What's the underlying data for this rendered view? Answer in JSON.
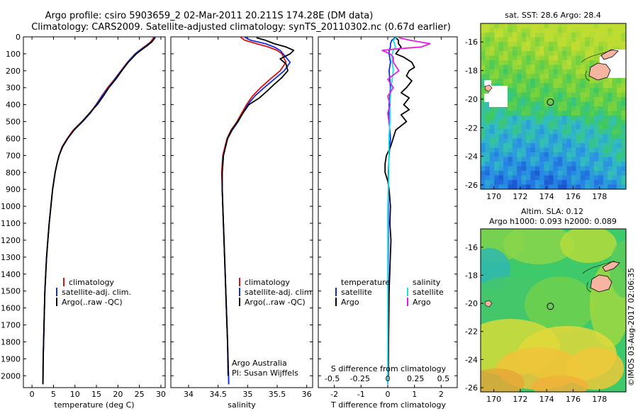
{
  "header": {
    "line1": "Argo profile: csiro 5903659_2 02-Mar-2011 20.211S 174.28E (DM data)",
    "line2": "Climatology: CARS2009. Satellite-adjusted climatology: synTS_20110302.nc (0.67d earlier)"
  },
  "colors": {
    "climatology": "#e01010",
    "satellite": "#1030e0",
    "argo": "#000000",
    "sal_satellite": "#20e0e0",
    "sal_argo": "#e020e0"
  },
  "chart_data": [
    {
      "type": "line",
      "title": "",
      "xlabel": "temperature (deg C)",
      "ylabel": "",
      "xlim": [
        -2,
        31
      ],
      "ylim": [
        2070,
        0
      ],
      "y_inverted": true,
      "xticks": [
        0,
        5,
        10,
        15,
        20,
        25,
        30
      ],
      "yticks": [
        0,
        100,
        200,
        300,
        400,
        500,
        600,
        700,
        800,
        900,
        1000,
        1100,
        1200,
        1300,
        1400,
        1500,
        1600,
        1700,
        1800,
        1900,
        2000
      ],
      "legend": [
        "climatology",
        "satellite-adj. clim.",
        "Argo(..raw -QC)"
      ],
      "series": [
        {
          "name": "climatology",
          "color": "#e01010",
          "depth": [
            2,
            10,
            30,
            50,
            80,
            100,
            150,
            200,
            250,
            300,
            350,
            400,
            450,
            500,
            550,
            600,
            650,
            700,
            750,
            800,
            900,
            1000,
            1100,
            1200,
            1300,
            1400,
            1500,
            1600,
            1700,
            1800,
            1900,
            2050
          ],
          "values": [
            28.3,
            28.2,
            27.6,
            26.6,
            25.0,
            24.0,
            22.2,
            20.7,
            19.2,
            17.6,
            16.2,
            14.9,
            13.5,
            11.6,
            9.6,
            8.2,
            7.0,
            6.3,
            5.8,
            5.4,
            4.8,
            4.4,
            4.0,
            3.7,
            3.4,
            3.2,
            3.0,
            2.9,
            2.8,
            2.7,
            2.6,
            2.55
          ]
        },
        {
          "name": "satellite-adj. clim.",
          "color": "#1030e0",
          "depth": [
            2,
            10,
            30,
            50,
            80,
            100,
            150,
            200,
            250,
            300,
            350,
            400,
            450,
            500,
            550,
            600,
            650,
            700,
            750,
            800,
            900,
            1000,
            1100,
            1200,
            1300,
            1400,
            1500,
            1600,
            1700,
            1800,
            1900,
            2050
          ],
          "values": [
            28.7,
            28.5,
            27.8,
            26.8,
            25.1,
            24.1,
            22.3,
            20.8,
            19.3,
            17.8,
            16.3,
            15.0,
            13.6,
            11.8,
            9.8,
            8.3,
            7.1,
            6.3,
            5.8,
            5.4,
            4.8,
            4.4,
            4.0,
            3.7,
            3.4,
            3.2,
            3.0,
            2.9,
            2.8,
            2.7,
            2.6,
            2.55
          ]
        },
        {
          "name": "Argo(..raw -QC)",
          "color": "#000000",
          "depth": [
            5,
            10,
            30,
            50,
            80,
            100,
            150,
            200,
            250,
            300,
            350,
            400,
            450,
            500,
            550,
            600,
            650,
            700,
            750,
            800,
            900,
            1000,
            1100,
            1200,
            1300,
            1400,
            1500,
            1600,
            1700,
            1800,
            1900,
            2050
          ],
          "values": [
            28.6,
            28.5,
            27.9,
            26.9,
            25.3,
            24.3,
            22.4,
            20.9,
            19.5,
            17.9,
            16.6,
            15.2,
            13.4,
            11.7,
            9.8,
            8.3,
            7.1,
            6.3,
            5.8,
            5.4,
            4.8,
            4.4,
            4.0,
            3.7,
            3.4,
            3.2,
            3.0,
            2.9,
            2.8,
            2.7,
            2.6,
            2.55
          ]
        }
      ]
    },
    {
      "type": "line",
      "title": "",
      "xlabel": "salinity",
      "ylabel": "",
      "xlim": [
        33.7,
        36.1
      ],
      "ylim": [
        2070,
        0
      ],
      "y_inverted": true,
      "xticks": [
        34,
        34.5,
        35,
        35.5,
        36
      ],
      "legend": [
        "climatology",
        "satellite-adj. clim.",
        "Argo(..raw -QC)"
      ],
      "annotation": [
        "Argo Australia",
        "PI: Susan Wijffels"
      ],
      "series": [
        {
          "name": "climatology",
          "color": "#e01010",
          "depth": [
            2,
            20,
            40,
            60,
            80,
            100,
            150,
            200,
            250,
            300,
            350,
            400,
            450,
            500,
            550,
            600,
            700,
            800,
            900,
            1000,
            1200,
            1400,
            1600,
            1800,
            2050
          ],
          "values": [
            34.88,
            34.95,
            35.15,
            35.35,
            35.5,
            35.58,
            35.65,
            35.55,
            35.38,
            35.22,
            35.08,
            34.98,
            34.9,
            34.82,
            34.72,
            34.65,
            34.58,
            34.56,
            34.57,
            34.58,
            34.6,
            34.62,
            34.64,
            34.66,
            34.68
          ]
        },
        {
          "name": "satellite-adj. clim.",
          "color": "#1030e0",
          "depth": [
            2,
            20,
            40,
            60,
            80,
            100,
            150,
            200,
            250,
            300,
            350,
            400,
            450,
            500,
            550,
            600,
            700,
            800,
            900,
            1000,
            1200,
            1400,
            1600,
            1800,
            2050
          ],
          "values": [
            34.95,
            35.05,
            35.3,
            35.45,
            35.55,
            35.6,
            35.72,
            35.62,
            35.45,
            35.28,
            35.12,
            35.0,
            34.92,
            34.84,
            34.74,
            34.66,
            34.59,
            34.57,
            34.57,
            34.58,
            34.6,
            34.62,
            34.64,
            34.66,
            34.68
          ]
        },
        {
          "name": "Argo(..raw -QC)",
          "color": "#000000",
          "depth": [
            5,
            20,
            40,
            60,
            80,
            100,
            130,
            160,
            200,
            240,
            280,
            320,
            360,
            400,
            450,
            500,
            550,
            600,
            700,
            800,
            900,
            1000,
            1200,
            1400,
            1600,
            1800,
            2000
          ],
          "values": [
            35.15,
            35.3,
            35.45,
            35.65,
            35.78,
            35.72,
            35.55,
            35.65,
            35.68,
            35.58,
            35.45,
            35.33,
            35.2,
            35.02,
            34.92,
            34.83,
            34.73,
            34.66,
            34.59,
            34.57,
            34.57,
            34.58,
            34.6,
            34.62,
            34.64,
            34.66,
            34.67
          ]
        }
      ]
    },
    {
      "type": "line",
      "title": "",
      "xlabel": "T difference from climatology",
      "ylabel": "",
      "xlim": [
        -2.6,
        2.6
      ],
      "ylim": [
        2070,
        0
      ],
      "y_inverted": true,
      "xticks": [
        -2,
        -1,
        0,
        1,
        2
      ],
      "top_xlabel": "S difference from climatology",
      "top_xticks": [
        "-0.5",
        "-0.25",
        "0",
        "0.25",
        "0.5"
      ],
      "legend_temperature": [
        "temperature",
        "satellite",
        "Argo"
      ],
      "legend_salinity": [
        "salinity",
        "satellite",
        "Argo"
      ],
      "series": [
        {
          "name": "T satellite",
          "color": "#1030e0",
          "depth": [
            2,
            20,
            40,
            60,
            80,
            100,
            150,
            200,
            300,
            400,
            500,
            600,
            700,
            800,
            1000,
            1200,
            1500,
            1800,
            2050
          ],
          "values": [
            0.3,
            0.15,
            0.1,
            0.1,
            0.05,
            0.05,
            0.1,
            0.05,
            0.1,
            0.05,
            0.05,
            0.1,
            0.05,
            0.02,
            0.02,
            0.02,
            0.01,
            0.01,
            0.0
          ]
        },
        {
          "name": "T Argo",
          "color": "#000000",
          "depth": [
            5,
            20,
            40,
            60,
            80,
            100,
            120,
            150,
            180,
            200,
            230,
            260,
            300,
            330,
            360,
            400,
            430,
            460,
            500,
            550,
            600,
            650,
            700,
            750,
            800,
            850,
            900,
            1000,
            1100,
            1200,
            1500,
            1800,
            2000
          ],
          "values": [
            0.3,
            0.4,
            0.4,
            0.5,
            0.4,
            0.3,
            0.6,
            0.9,
            1.0,
            0.8,
            0.7,
            0.9,
            0.7,
            0.5,
            0.8,
            0.6,
            0.8,
            0.5,
            0.7,
            0.3,
            0.2,
            0.1,
            -0.05,
            -0.1,
            -0.1,
            0.0,
            0.05,
            0.1,
            0.08,
            0.12,
            0.05,
            0.03,
            0.02
          ]
        },
        {
          "name": "S satellite",
          "color": "#20e0e0",
          "depth": [
            2,
            20,
            40,
            60,
            80,
            100,
            150,
            200,
            300,
            400,
            500,
            600,
            800,
            1000,
            1500,
            2050
          ],
          "values": [
            0.08,
            0.05,
            0.06,
            0.07,
            0.05,
            0.04,
            0.04,
            0.05,
            0.03,
            0.02,
            0.02,
            0.01,
            0.01,
            0.0,
            0.0,
            0.0
          ]
        },
        {
          "name": "S Argo",
          "color": "#e020e0",
          "depth": [
            5,
            20,
            40,
            60,
            70,
            80,
            100,
            120,
            150,
            200,
            250,
            300,
            350,
            400,
            450,
            500
          ],
          "values": [
            0.1,
            0.2,
            0.38,
            0.3,
            0.1,
            -0.05,
            0.02,
            0.05,
            0.05,
            0.1,
            0.0,
            0.05,
            0.0,
            0.02,
            0.0,
            0.01
          ]
        }
      ]
    }
  ],
  "maps": [
    {
      "title": "sat. SST: 28.6 Argo: 28.4",
      "xticks": [
        "170",
        "172",
        "174",
        "176",
        "178"
      ],
      "yticks": [
        "-16",
        "-18",
        "-20",
        "-22",
        "-24",
        "-26"
      ],
      "lon_range": [
        169,
        180
      ],
      "lat_range": [
        -26.3,
        -14.7
      ],
      "marker": {
        "lon": 174.28,
        "lat": -20.211
      }
    },
    {
      "title1": "Altim. SLA: 0.12",
      "title2": "Argo h1000: 0.093 h2000: 0.089",
      "xticks": [
        "170",
        "172",
        "174",
        "176",
        "178"
      ],
      "yticks": [
        "-16",
        "-18",
        "-20",
        "-22",
        "-24",
        "-26"
      ],
      "lon_range": [
        169,
        180
      ],
      "lat_range": [
        -26.3,
        -14.7
      ],
      "marker": {
        "lon": 174.28,
        "lat": -20.211
      }
    }
  ],
  "credit": "©IMOS 03-Aug-2017 02:06:35"
}
